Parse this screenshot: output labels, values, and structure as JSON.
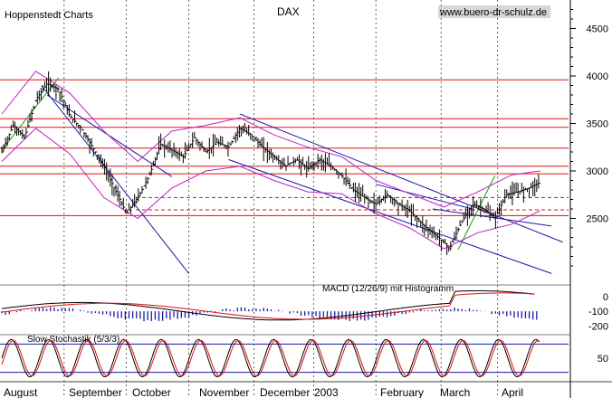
{
  "header": {
    "left_label": "Hoppenstedt Charts",
    "title": "DAX",
    "source": "www.buero-dr-schulz.de"
  },
  "chart_data": [
    {
      "type": "line",
      "name": "price",
      "title": "DAX",
      "ylim": [
        1800,
        4800
      ],
      "y_ticks": [
        2500,
        3000,
        3500,
        4000,
        4500
      ],
      "x_labels": [
        "August",
        "September",
        "October",
        "November",
        "December",
        "2003",
        "February",
        "March",
        "April"
      ],
      "resistance_levels": [
        3960,
        3550,
        3460,
        3240,
        3050,
        2970,
        2530
      ],
      "dashed_levels": [
        2720,
        2590
      ],
      "price_points": [
        [
          0,
          3200
        ],
        [
          0.02,
          3480
        ],
        [
          0.04,
          3350
        ],
        [
          0.06,
          3750
        ],
        [
          0.08,
          3920
        ],
        [
          0.1,
          3860
        ],
        [
          0.12,
          3580
        ],
        [
          0.14,
          3450
        ],
        [
          0.16,
          3250
        ],
        [
          0.18,
          3050
        ],
        [
          0.2,
          2800
        ],
        [
          0.22,
          2550
        ],
        [
          0.24,
          2720
        ],
        [
          0.26,
          2950
        ],
        [
          0.28,
          3280
        ],
        [
          0.3,
          3220
        ],
        [
          0.32,
          3150
        ],
        [
          0.34,
          3350
        ],
        [
          0.36,
          3200
        ],
        [
          0.38,
          3300
        ],
        [
          0.4,
          3250
        ],
        [
          0.42,
          3450
        ],
        [
          0.44,
          3380
        ],
        [
          0.46,
          3250
        ],
        [
          0.48,
          3150
        ],
        [
          0.5,
          3050
        ],
        [
          0.52,
          3120
        ],
        [
          0.54,
          3020
        ],
        [
          0.56,
          3120
        ],
        [
          0.58,
          3050
        ],
        [
          0.6,
          2950
        ],
        [
          0.62,
          2800
        ],
        [
          0.64,
          2720
        ],
        [
          0.66,
          2650
        ],
        [
          0.68,
          2750
        ],
        [
          0.7,
          2650
        ],
        [
          0.72,
          2580
        ],
        [
          0.74,
          2450
        ],
        [
          0.76,
          2350
        ],
        [
          0.78,
          2250
        ],
        [
          0.79,
          2180
        ],
        [
          0.81,
          2450
        ],
        [
          0.83,
          2650
        ],
        [
          0.85,
          2600
        ],
        [
          0.87,
          2500
        ],
        [
          0.89,
          2750
        ],
        [
          0.91,
          2780
        ],
        [
          0.93,
          2820
        ],
        [
          0.95,
          2880
        ]
      ],
      "upper_band": [
        [
          0,
          3600
        ],
        [
          0.06,
          4050
        ],
        [
          0.12,
          3820
        ],
        [
          0.18,
          3420
        ],
        [
          0.24,
          3100
        ],
        [
          0.3,
          3420
        ],
        [
          0.36,
          3480
        ],
        [
          0.42,
          3560
        ],
        [
          0.48,
          3380
        ],
        [
          0.54,
          3250
        ],
        [
          0.6,
          3150
        ],
        [
          0.66,
          2900
        ],
        [
          0.72,
          2760
        ],
        [
          0.78,
          2620
        ],
        [
          0.84,
          2780
        ],
        [
          0.9,
          2960
        ],
        [
          0.95,
          3000
        ]
      ],
      "lower_band": [
        [
          0,
          3100
        ],
        [
          0.06,
          3450
        ],
        [
          0.12,
          3180
        ],
        [
          0.18,
          2720
        ],
        [
          0.24,
          2500
        ],
        [
          0.3,
          2820
        ],
        [
          0.36,
          3000
        ],
        [
          0.42,
          3050
        ],
        [
          0.48,
          2900
        ],
        [
          0.54,
          2780
        ],
        [
          0.6,
          2760
        ],
        [
          0.66,
          2550
        ],
        [
          0.72,
          2400
        ],
        [
          0.78,
          2180
        ],
        [
          0.84,
          2350
        ],
        [
          0.9,
          2440
        ],
        [
          0.95,
          2580
        ]
      ]
    },
    {
      "type": "line",
      "name": "macd",
      "title": "MACD (12/26/9) mit Histogramm",
      "ylim": [
        -260,
        80
      ],
      "y_ticks": [
        0,
        -100,
        -200
      ]
    },
    {
      "type": "line",
      "name": "stochastic",
      "title": "Slow Stochastik (5/3/3)",
      "ylim": [
        0,
        100
      ],
      "y_ticks": [
        50
      ],
      "levels": [
        80,
        20
      ]
    }
  ]
}
